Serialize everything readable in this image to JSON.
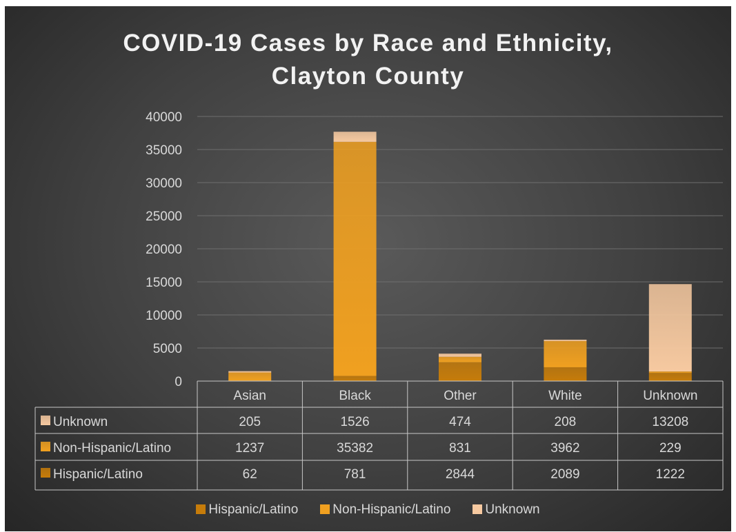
{
  "chart_data": {
    "type": "bar",
    "stacked": true,
    "title": "COVID-19 Cases by Race and Ethnicity, Clayton County",
    "title_lines": [
      "COVID-19 Cases by Race and Ethnicity,",
      "Clayton County"
    ],
    "categories": [
      "Asian",
      "Black",
      "Other",
      "White",
      "Unknown"
    ],
    "series": [
      {
        "name": "Hispanic/Latino",
        "color": "#c67c0a",
        "values": [
          62,
          781,
          2844,
          2089,
          1222
        ]
      },
      {
        "name": "Non-Hispanic/Latino",
        "color": "#f0a020",
        "values": [
          1237,
          35382,
          831,
          3962,
          229
        ]
      },
      {
        "name": "Unknown",
        "color": "#f6c9a0",
        "values": [
          205,
          1526,
          474,
          208,
          13208
        ]
      }
    ],
    "table_row_order": [
      "Unknown",
      "Non-Hispanic/Latino",
      "Hispanic/Latino"
    ],
    "ylim": [
      0,
      40000
    ],
    "yticks": [
      0,
      5000,
      10000,
      15000,
      20000,
      25000,
      30000,
      35000,
      40000
    ],
    "grid": true,
    "legend_position": "bottom",
    "data_table": true
  }
}
